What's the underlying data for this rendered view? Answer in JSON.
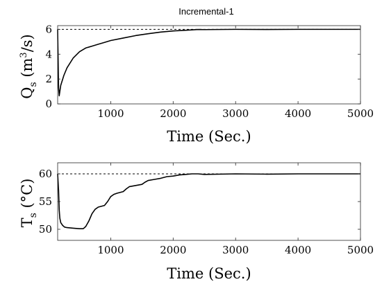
{
  "figure_title": "Incremental-1",
  "chart_data": [
    {
      "type": "line",
      "title": "Incremental-1",
      "xlabel": "Time (Sec.)",
      "ylabel": {
        "main": "Q",
        "sub": "s",
        "pre": " (m",
        "sup": "3",
        "post": "/s)"
      },
      "xlim": [
        150,
        5000
      ],
      "ylim": [
        0,
        6.3
      ],
      "xticks": [
        1000,
        2000,
        3000,
        4000,
        5000
      ],
      "yticks": [
        0,
        2,
        4,
        6
      ],
      "grid": false,
      "reference": {
        "style": "dashed",
        "y": 6
      },
      "series": [
        {
          "x": [
            150,
            165,
            175,
            185,
            200,
            250,
            300,
            400,
            500,
            600,
            700,
            800,
            900,
            1000,
            1200,
            1400,
            1600,
            1800,
            2000,
            2200,
            2400,
            2500,
            3000,
            3500,
            4000,
            4500,
            5000
          ],
          "y": [
            6.0,
            1.3,
            0.65,
            1.0,
            1.5,
            2.3,
            2.9,
            3.7,
            4.2,
            4.5,
            4.65,
            4.8,
            4.95,
            5.1,
            5.3,
            5.5,
            5.65,
            5.78,
            5.87,
            5.93,
            5.99,
            5.98,
            6.0,
            5.99,
            6.0,
            6.0,
            6.0
          ]
        }
      ]
    },
    {
      "type": "line",
      "xlabel": "Time (Sec.)",
      "ylabel": {
        "main": "T",
        "sub": "s",
        "pre": " (°C)",
        "sup": "",
        "post": ""
      },
      "xlim": [
        150,
        5000
      ],
      "ylim": [
        48,
        62
      ],
      "xticks": [
        1000,
        2000,
        3000,
        4000,
        5000
      ],
      "yticks": [
        50,
        55,
        60
      ],
      "grid": false,
      "reference": {
        "style": "dashed",
        "y": 60
      },
      "series": [
        {
          "x": [
            150,
            165,
            175,
            185,
            200,
            230,
            260,
            300,
            400,
            500,
            560,
            600,
            650,
            700,
            750,
            800,
            900,
            950,
            1000,
            1050,
            1100,
            1200,
            1250,
            1300,
            1400,
            1500,
            1550,
            1600,
            1700,
            1800,
            1900,
            2000,
            2100,
            2200,
            2300,
            2400,
            2500,
            3000,
            3500,
            4000,
            4500,
            5000
          ],
          "y": [
            60.0,
            57.0,
            53.5,
            52.0,
            51.2,
            50.7,
            50.4,
            50.3,
            50.2,
            50.1,
            50.1,
            50.5,
            51.5,
            52.8,
            53.6,
            54.0,
            54.3,
            55.0,
            55.9,
            56.3,
            56.5,
            56.8,
            57.3,
            57.7,
            57.9,
            58.1,
            58.5,
            58.8,
            59.0,
            59.2,
            59.5,
            59.6,
            59.8,
            59.9,
            60.0,
            60.0,
            59.9,
            60.0,
            59.95,
            60.0,
            60.0,
            60.0
          ]
        }
      ]
    }
  ]
}
